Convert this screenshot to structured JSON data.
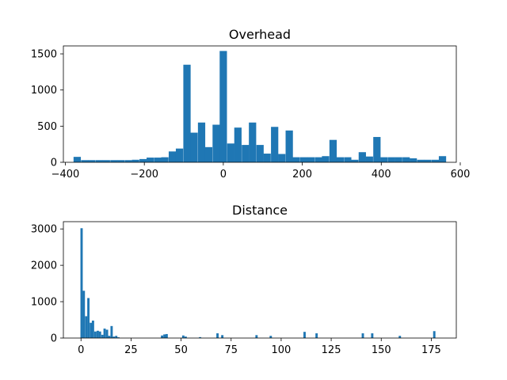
{
  "chart_data": [
    {
      "type": "bar",
      "title": "Overhead",
      "xlabel": "",
      "ylabel": "",
      "xlim": [
        -405,
        590
      ],
      "ylim": [
        0,
        1610
      ],
      "grid": false,
      "color": "#1f77b4",
      "xticks": [
        -400,
        -200,
        0,
        200,
        400,
        600
      ],
      "yticks": [
        0,
        500,
        1000,
        1500
      ],
      "bin_width": 18.5,
      "bins": [
        {
          "x": -370,
          "y": 75
        },
        {
          "x": -351,
          "y": 30
        },
        {
          "x": -333,
          "y": 30
        },
        {
          "x": -314,
          "y": 30
        },
        {
          "x": -296,
          "y": 30
        },
        {
          "x": -277,
          "y": 30
        },
        {
          "x": -259,
          "y": 30
        },
        {
          "x": -240,
          "y": 30
        },
        {
          "x": -222,
          "y": 35
        },
        {
          "x": -203,
          "y": 45
        },
        {
          "x": -185,
          "y": 65
        },
        {
          "x": -166,
          "y": 65
        },
        {
          "x": -148,
          "y": 70
        },
        {
          "x": -129,
          "y": 150
        },
        {
          "x": -111,
          "y": 190
        },
        {
          "x": -92,
          "y": 1350
        },
        {
          "x": -74,
          "y": 410
        },
        {
          "x": -55,
          "y": 550
        },
        {
          "x": -37,
          "y": 210
        },
        {
          "x": -18,
          "y": 520
        },
        {
          "x": 0,
          "y": 1540
        },
        {
          "x": 19,
          "y": 260
        },
        {
          "x": 37,
          "y": 480
        },
        {
          "x": 56,
          "y": 240
        },
        {
          "x": 74,
          "y": 550
        },
        {
          "x": 93,
          "y": 240
        },
        {
          "x": 111,
          "y": 120
        },
        {
          "x": 130,
          "y": 490
        },
        {
          "x": 148,
          "y": 115
        },
        {
          "x": 167,
          "y": 440
        },
        {
          "x": 185,
          "y": 70
        },
        {
          "x": 204,
          "y": 70
        },
        {
          "x": 222,
          "y": 70
        },
        {
          "x": 241,
          "y": 70
        },
        {
          "x": 259,
          "y": 85
        },
        {
          "x": 278,
          "y": 310
        },
        {
          "x": 296,
          "y": 70
        },
        {
          "x": 315,
          "y": 70
        },
        {
          "x": 333,
          "y": 35
        },
        {
          "x": 352,
          "y": 140
        },
        {
          "x": 370,
          "y": 80
        },
        {
          "x": 389,
          "y": 350
        },
        {
          "x": 407,
          "y": 70
        },
        {
          "x": 426,
          "y": 70
        },
        {
          "x": 444,
          "y": 70
        },
        {
          "x": 463,
          "y": 70
        },
        {
          "x": 481,
          "y": 55
        },
        {
          "x": 500,
          "y": 35
        },
        {
          "x": 518,
          "y": 35
        },
        {
          "x": 537,
          "y": 35
        },
        {
          "x": 555,
          "y": 85
        }
      ]
    },
    {
      "type": "bar",
      "title": "Distance",
      "xlabel": "",
      "ylabel": "",
      "xlim": [
        -8.8,
        187.5
      ],
      "ylim": [
        0,
        3200
      ],
      "grid": false,
      "color": "#1f77b4",
      "xticks": [
        0,
        25,
        50,
        75,
        100,
        125,
        150,
        175
      ],
      "yticks": [
        0,
        1000,
        2000,
        3000
      ],
      "bin_width": 1.15,
      "bins": [
        {
          "x": 0.3,
          "y": 3020
        },
        {
          "x": 1.4,
          "y": 1300
        },
        {
          "x": 2.6,
          "y": 600
        },
        {
          "x": 3.7,
          "y": 1100
        },
        {
          "x": 4.9,
          "y": 420
        },
        {
          "x": 6.0,
          "y": 480
        },
        {
          "x": 7.2,
          "y": 180
        },
        {
          "x": 8.4,
          "y": 200
        },
        {
          "x": 9.5,
          "y": 180
        },
        {
          "x": 10.7,
          "y": 90
        },
        {
          "x": 11.8,
          "y": 260
        },
        {
          "x": 13.0,
          "y": 230
        },
        {
          "x": 14.1,
          "y": 60
        },
        {
          "x": 15.3,
          "y": 330
        },
        {
          "x": 16.4,
          "y": 40
        },
        {
          "x": 17.6,
          "y": 60
        },
        {
          "x": 18.7,
          "y": 20
        },
        {
          "x": 40.5,
          "y": 70
        },
        {
          "x": 41.7,
          "y": 100
        },
        {
          "x": 42.8,
          "y": 110
        },
        {
          "x": 51.1,
          "y": 70
        },
        {
          "x": 52.3,
          "y": 40
        },
        {
          "x": 59.5,
          "y": 25
        },
        {
          "x": 68.2,
          "y": 130
        },
        {
          "x": 70.6,
          "y": 80
        },
        {
          "x": 87.7,
          "y": 80
        },
        {
          "x": 94.8,
          "y": 60
        },
        {
          "x": 111.7,
          "y": 170
        },
        {
          "x": 117.7,
          "y": 130
        },
        {
          "x": 140.8,
          "y": 130
        },
        {
          "x": 145.5,
          "y": 130
        },
        {
          "x": 159.3,
          "y": 60
        },
        {
          "x": 176.5,
          "y": 190
        }
      ]
    }
  ]
}
